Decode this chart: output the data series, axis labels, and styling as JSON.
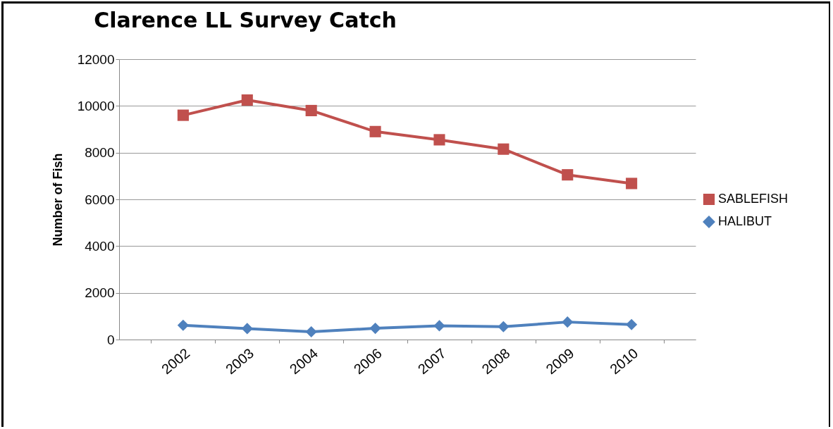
{
  "chart_data": {
    "type": "line",
    "title": "Clarence LL Survey Catch",
    "ylabel": "Number of Fish",
    "categories": [
      "2002",
      "2003",
      "2004",
      "2006",
      "2007",
      "2008",
      "2009",
      "2010"
    ],
    "series": [
      {
        "name": "SABLEFISH",
        "color": "#c0504d",
        "marker": "square",
        "values": [
          9600,
          10250,
          9800,
          8900,
          8550,
          8150,
          7050,
          6680
        ]
      },
      {
        "name": "HALIBUT",
        "color": "#4f81bd",
        "marker": "diamond",
        "values": [
          610,
          470,
          330,
          480,
          590,
          550,
          750,
          640
        ]
      }
    ],
    "ylim": [
      0,
      12000
    ],
    "yticks": [
      0,
      2000,
      4000,
      6000,
      8000,
      10000,
      12000
    ],
    "grid": "y",
    "legend": "right"
  }
}
